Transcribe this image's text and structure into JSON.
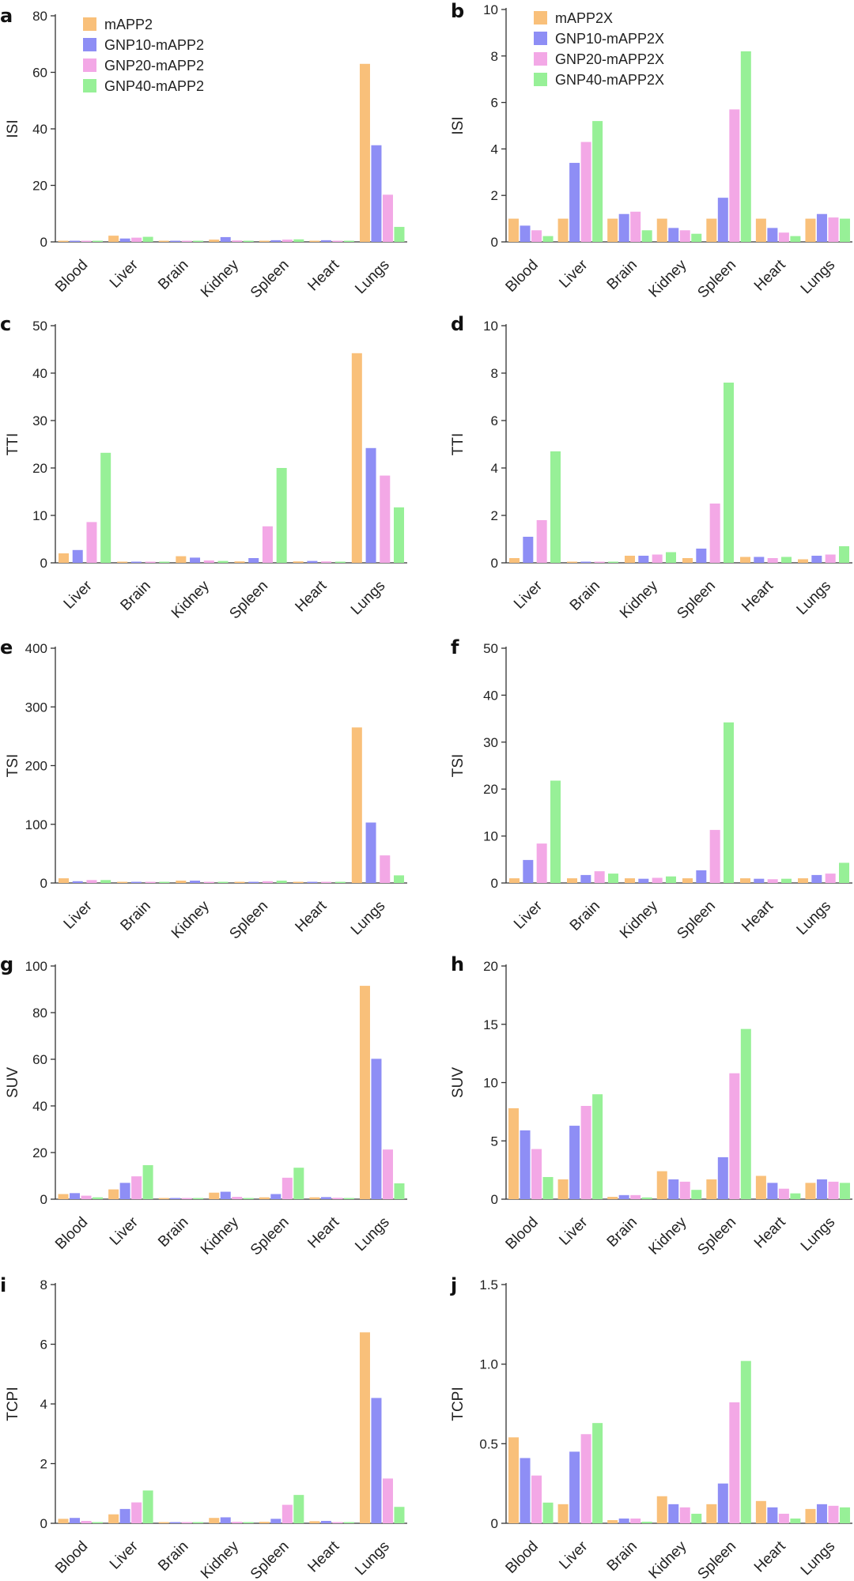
{
  "series_colors": [
    "#f9c07a",
    "#8e8ef5",
    "#f3a8e6",
    "#97f097"
  ],
  "chart_data": [
    {
      "panel": "a",
      "type": "bar",
      "ylabel": "ISI",
      "ylim": [
        0,
        80
      ],
      "yticks": [
        0,
        20,
        40,
        60,
        80
      ],
      "legend": "top-left",
      "categories": [
        "Blood",
        "Liver",
        "Brain",
        "Kidney",
        "Spleen",
        "Heart",
        "Lungs"
      ],
      "series": [
        {
          "name": "mAPP2",
          "values": [
            0.3,
            2.2,
            0.4,
            0.8,
            0.4,
            0.4,
            63
          ]
        },
        {
          "name": "GNP10-mAPP2",
          "values": [
            0.3,
            1.2,
            0.3,
            1.7,
            0.6,
            0.6,
            34.2
          ]
        },
        {
          "name": "GNP20-mAPP2",
          "values": [
            0.2,
            1.5,
            0.2,
            0.5,
            0.8,
            0.3,
            16.7
          ]
        },
        {
          "name": "GNP40-mAPP2",
          "values": [
            0.2,
            1.8,
            0.2,
            0.3,
            0.9,
            0.3,
            5.3
          ]
        }
      ]
    },
    {
      "panel": "b",
      "type": "bar",
      "ylabel": "ISI",
      "ylim": [
        0,
        10
      ],
      "yticks": [
        0,
        2,
        4,
        6,
        8,
        10
      ],
      "legend": "top-left",
      "categories": [
        "Blood",
        "Liver",
        "Brain",
        "Kidney",
        "Spleen",
        "Heart",
        "Lungs"
      ],
      "series": [
        {
          "name": "mAPP2X",
          "values": [
            1.0,
            1.0,
            1.0,
            1.0,
            1.0,
            1.0,
            1.0
          ]
        },
        {
          "name": "GNP10-mAPP2X",
          "values": [
            0.7,
            3.4,
            1.2,
            0.6,
            1.9,
            0.6,
            1.2
          ]
        },
        {
          "name": "GNP20-mAPP2X",
          "values": [
            0.5,
            4.3,
            1.3,
            0.5,
            5.7,
            0.4,
            1.05
          ]
        },
        {
          "name": "GNP40-mAPP2X",
          "values": [
            0.25,
            5.2,
            0.5,
            0.35,
            8.2,
            0.25,
            1.0
          ]
        }
      ]
    },
    {
      "panel": "c",
      "type": "bar",
      "ylabel": "TTI",
      "ylim": [
        0,
        50
      ],
      "yticks": [
        0,
        10,
        20,
        30,
        40,
        50
      ],
      "categories": [
        "Liver",
        "Brain",
        "Kidney",
        "Spleen",
        "Heart",
        "Lungs"
      ],
      "series": [
        {
          "name": "mAPP2",
          "values": [
            2.0,
            0.05,
            1.4,
            0.3,
            0.3,
            44.2
          ]
        },
        {
          "name": "GNP10-mAPP2",
          "values": [
            2.7,
            0.05,
            1.1,
            1.0,
            0.4,
            24.2
          ]
        },
        {
          "name": "GNP20-mAPP2",
          "values": [
            8.6,
            0.05,
            0.5,
            7.7,
            0.3,
            18.4
          ]
        },
        {
          "name": "GNP40-mAPP2",
          "values": [
            23.2,
            0.05,
            0.4,
            20.0,
            0.2,
            11.7
          ]
        }
      ]
    },
    {
      "panel": "d",
      "type": "bar",
      "ylabel": "TTI",
      "ylim": [
        0,
        10
      ],
      "yticks": [
        0,
        2,
        4,
        6,
        8,
        10
      ],
      "categories": [
        "Liver",
        "Brain",
        "Kidney",
        "Spleen",
        "Heart",
        "Lungs"
      ],
      "series": [
        {
          "name": "mAPP2X",
          "values": [
            0.2,
            0.02,
            0.3,
            0.2,
            0.25,
            0.15
          ]
        },
        {
          "name": "GNP10-mAPP2X",
          "values": [
            1.1,
            0.05,
            0.3,
            0.6,
            0.25,
            0.3
          ]
        },
        {
          "name": "GNP20-mAPP2X",
          "values": [
            1.8,
            0.05,
            0.35,
            2.5,
            0.2,
            0.35
          ]
        },
        {
          "name": "GNP40-mAPP2X",
          "values": [
            4.7,
            0.05,
            0.45,
            7.6,
            0.25,
            0.7
          ]
        }
      ]
    },
    {
      "panel": "e",
      "type": "bar",
      "ylabel": "TSI",
      "ylim": [
        0,
        400
      ],
      "yticks": [
        0,
        100,
        200,
        300,
        400
      ],
      "categories": [
        "Liver",
        "Brain",
        "Kidney",
        "Spleen",
        "Heart",
        "Lungs"
      ],
      "series": [
        {
          "name": "mAPP2",
          "values": [
            8,
            1,
            4,
            1,
            1,
            265
          ]
        },
        {
          "name": "GNP10-mAPP2",
          "values": [
            3,
            1,
            4,
            2,
            1,
            103
          ]
        },
        {
          "name": "GNP20-mAPP2",
          "values": [
            5,
            1,
            2,
            3,
            1,
            47
          ]
        },
        {
          "name": "GNP40-mAPP2",
          "values": [
            5,
            1,
            1,
            4,
            1,
            13
          ]
        }
      ]
    },
    {
      "panel": "f",
      "type": "bar",
      "ylabel": "TSI",
      "ylim": [
        0,
        50
      ],
      "yticks": [
        0,
        10,
        20,
        30,
        40,
        50
      ],
      "categories": [
        "Liver",
        "Brain",
        "Kidney",
        "Spleen",
        "Heart",
        "Lungs"
      ],
      "series": [
        {
          "name": "mAPP2X",
          "values": [
            1.0,
            1.0,
            1.0,
            1.0,
            1.0,
            1.0
          ]
        },
        {
          "name": "GNP10-mAPP2X",
          "values": [
            4.9,
            1.7,
            0.9,
            2.7,
            0.9,
            1.7
          ]
        },
        {
          "name": "GNP20-mAPP2X",
          "values": [
            8.4,
            2.5,
            1.1,
            11.3,
            0.8,
            2.0
          ]
        },
        {
          "name": "GNP40-mAPP2X",
          "values": [
            21.8,
            2.0,
            1.4,
            34.2,
            0.9,
            4.3
          ]
        }
      ]
    },
    {
      "panel": "g",
      "type": "bar",
      "ylabel": "SUV",
      "ylim": [
        0,
        100
      ],
      "yticks": [
        0,
        20,
        40,
        60,
        80,
        100
      ],
      "categories": [
        "Blood",
        "Liver",
        "Brain",
        "Kidney",
        "Spleen",
        "Heart",
        "Lungs"
      ],
      "series": [
        {
          "name": "mAPP2",
          "values": [
            2.2,
            4.2,
            0.2,
            2.8,
            0.8,
            0.8,
            91.5
          ]
        },
        {
          "name": "GNP10-mAPP2",
          "values": [
            2.6,
            7.0,
            0.2,
            3.2,
            2.2,
            0.9,
            60.2
          ]
        },
        {
          "name": "GNP20-mAPP2",
          "values": [
            1.5,
            9.8,
            0.1,
            1.0,
            9.2,
            0.6,
            21.3
          ]
        },
        {
          "name": "GNP40-mAPP2",
          "values": [
            0.8,
            14.6,
            0.1,
            0.5,
            13.5,
            0.4,
            6.8
          ]
        }
      ]
    },
    {
      "panel": "h",
      "type": "bar",
      "ylabel": "SUV",
      "ylim": [
        0,
        20
      ],
      "yticks": [
        0,
        5,
        10,
        15,
        20
      ],
      "categories": [
        "Blood",
        "Liver",
        "Brain",
        "Kidney",
        "Spleen",
        "Heart",
        "Lungs"
      ],
      "series": [
        {
          "name": "mAPP2X",
          "values": [
            7.8,
            1.7,
            0.2,
            2.4,
            1.7,
            2.0,
            1.4
          ]
        },
        {
          "name": "GNP10-mAPP2X",
          "values": [
            5.9,
            6.3,
            0.35,
            1.7,
            3.6,
            1.4,
            1.7
          ]
        },
        {
          "name": "GNP20-mAPP2X",
          "values": [
            4.3,
            8.0,
            0.35,
            1.5,
            10.8,
            0.9,
            1.5
          ]
        },
        {
          "name": "GNP40-mAPP2X",
          "values": [
            1.9,
            9.0,
            0.15,
            0.8,
            14.6,
            0.5,
            1.4
          ]
        }
      ]
    },
    {
      "panel": "i",
      "type": "bar",
      "ylabel": "TCPI",
      "ylim": [
        0,
        8
      ],
      "yticks": [
        0,
        2,
        4,
        6,
        8
      ],
      "categories": [
        "Blood",
        "Liver",
        "Brain",
        "Kidney",
        "Spleen",
        "Heart",
        "Lungs"
      ],
      "series": [
        {
          "name": "mAPP2",
          "values": [
            0.15,
            0.3,
            0.02,
            0.18,
            0.05,
            0.07,
            6.4
          ]
        },
        {
          "name": "GNP10-mAPP2",
          "values": [
            0.18,
            0.48,
            0.02,
            0.2,
            0.15,
            0.08,
            4.2
          ]
        },
        {
          "name": "GNP20-mAPP2",
          "values": [
            0.08,
            0.7,
            0.01,
            0.05,
            0.62,
            0.03,
            1.5
          ]
        },
        {
          "name": "GNP40-mAPP2",
          "values": [
            0.04,
            1.1,
            0.01,
            0.03,
            0.95,
            0.02,
            0.55
          ]
        }
      ]
    },
    {
      "panel": "j",
      "type": "bar",
      "ylabel": "TCPI",
      "ylim": [
        0,
        1.5
      ],
      "yticks": [
        "0",
        "0.5",
        "1.0",
        "1.5"
      ],
      "categories": [
        "Blood",
        "Liver",
        "Brain",
        "Kidney",
        "Spleen",
        "Heart",
        "Lungs"
      ],
      "series": [
        {
          "name": "mAPP2X",
          "values": [
            0.54,
            0.12,
            0.02,
            0.17,
            0.12,
            0.14,
            0.09
          ]
        },
        {
          "name": "GNP10-mAPP2X",
          "values": [
            0.41,
            0.45,
            0.03,
            0.12,
            0.25,
            0.1,
            0.12
          ]
        },
        {
          "name": "GNP20-mAPP2X",
          "values": [
            0.3,
            0.56,
            0.03,
            0.1,
            0.76,
            0.06,
            0.11
          ]
        },
        {
          "name": "GNP40-mAPP2X",
          "values": [
            0.13,
            0.63,
            0.01,
            0.06,
            1.02,
            0.03,
            0.1
          ]
        }
      ]
    }
  ]
}
